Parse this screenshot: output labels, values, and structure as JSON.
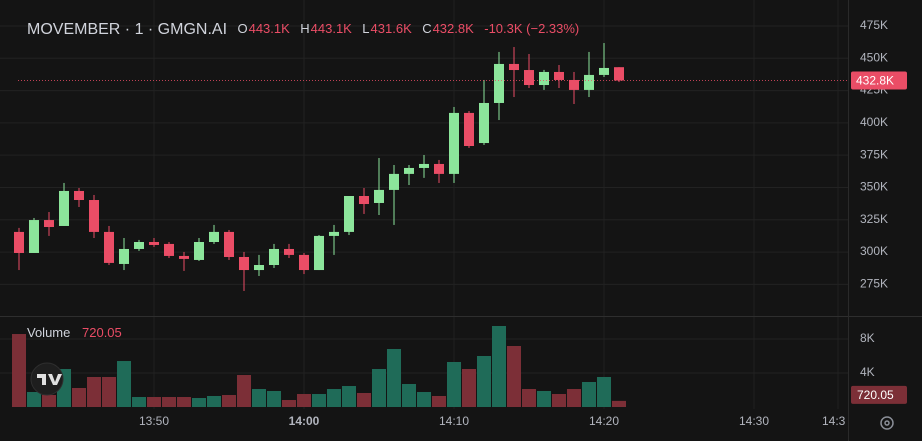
{
  "chart_data": [
    {
      "type": "candlestick",
      "title": "MOVEMBER · 1 · GMGN.AI",
      "ohlc_labels": [
        {
          "key": "O",
          "value": "443.1K"
        },
        {
          "key": "H",
          "value": "443.1K"
        },
        {
          "key": "L",
          "value": "431.6K"
        },
        {
          "key": "C",
          "value": "432.8K"
        }
      ],
      "change": "-10.3K (−2.33%)",
      "x": [
        821,
        822,
        823,
        824,
        825,
        826,
        827,
        828,
        829,
        830,
        831,
        832,
        833,
        834,
        835,
        836,
        837,
        838,
        839,
        840,
        841,
        842,
        843,
        844,
        845,
        846,
        847,
        848,
        849,
        850,
        851,
        852,
        853,
        854,
        855,
        856,
        857,
        858,
        859,
        860,
        861
      ],
      "open": [
        315.6,
        299.3,
        324.8,
        320.2,
        347.3,
        340.3,
        315.6,
        290.8,
        302.4,
        307.8,
        306.3,
        297.0,
        293.9,
        307.8,
        315.6,
        296.2,
        286.1,
        290.0,
        302.4,
        297.8,
        286.1,
        312.5,
        315.6,
        343.4,
        338.0,
        348.1,
        360.5,
        365.1,
        368.2,
        360.5,
        407.7,
        384.4,
        415.4,
        445.6,
        440.9,
        429.3,
        439.4,
        433.2,
        425.5,
        437.1,
        443.1
      ],
      "high": [
        318.7,
        326.4,
        331.0,
        353.5,
        349.6,
        344.2,
        320.2,
        310.9,
        309.4,
        310.9,
        307.8,
        300.1,
        310.9,
        321.0,
        317.1,
        300.1,
        297.8,
        306.3,
        306.3,
        299.3,
        313.2,
        321.0,
        343.4,
        349.6,
        372.8,
        367.4,
        367.4,
        375.1,
        371.3,
        412.3,
        409.2,
        433.2,
        454.9,
        458.7,
        453.3,
        441.0,
        444.8,
        439.4,
        454.9,
        461.8,
        443.1
      ],
      "low": [
        286.1,
        299.3,
        312.5,
        320.2,
        334.9,
        310.9,
        290.0,
        286.1,
        300.9,
        304.0,
        295.4,
        285.4,
        293.1,
        306.3,
        293.9,
        269.9,
        281.5,
        287.7,
        295.4,
        283.0,
        286.1,
        297.8,
        313.2,
        329.5,
        328.7,
        321.0,
        351.9,
        357.4,
        353.5,
        353.5,
        380.6,
        382.9,
        402.2,
        420.0,
        427.0,
        425.5,
        427.0,
        414.6,
        420.0,
        435.5,
        431.6
      ],
      "close": [
        299.3,
        324.8,
        319.4,
        347.3,
        340.3,
        315.6,
        291.6,
        302.4,
        307.8,
        305.5,
        297.0,
        294.7,
        307.8,
        315.6,
        296.2,
        286.1,
        290.0,
        302.4,
        297.8,
        286.1,
        312.5,
        315.6,
        343.4,
        337.2,
        348.1,
        360.5,
        365.1,
        368.2,
        360.5,
        407.7,
        382.1,
        415.4,
        445.6,
        440.9,
        429.3,
        439.4,
        433.2,
        425.5,
        437.1,
        442.5,
        432.8
      ],
      "up_color": "#8ce59b",
      "down_color": "#ea4d66",
      "xlim": [
        819.733,
        876.267
      ],
      "xticks": [
        {
          "value": 830,
          "label": "13:50"
        },
        {
          "value": 840,
          "label": "14:00"
        },
        {
          "value": 850,
          "label": "14:10"
        },
        {
          "value": 860,
          "label": "14:20"
        },
        {
          "value": 870,
          "label": "14:30"
        },
        {
          "value": 875.6,
          "label": "14:3"
        }
      ],
      "ylim": [
        251.3,
        495.1
      ],
      "yticks": [
        {
          "value": 275,
          "label": "275K"
        },
        {
          "value": 300,
          "label": "300K"
        },
        {
          "value": 325,
          "label": "325K"
        },
        {
          "value": 350,
          "label": "350K"
        },
        {
          "value": 375,
          "label": "375K"
        },
        {
          "value": 400,
          "label": "400K"
        },
        {
          "value": 425,
          "label": "425K"
        },
        {
          "value": 450,
          "label": "450K"
        },
        {
          "value": 475,
          "label": "475K"
        }
      ],
      "grid": true
    },
    {
      "type": "volume",
      "title": "Volume",
      "values": [
        8585,
        1764,
        1411,
        4470,
        2235,
        3529,
        3529,
        5410,
        1176,
        1176,
        1176,
        1176,
        1058,
        1294,
        1411,
        3764,
        2117,
        1882,
        823,
        1529,
        1529,
        2117,
        2470,
        1647,
        4470,
        6823,
        2706,
        1764,
        1294,
        5294,
        4470,
        6000,
        9529,
        7176,
        2117,
        1882,
        1529,
        2117,
        2941,
        3529,
        720.05
      ],
      "up_color": "#1f6b58",
      "down_color": "#7c2f37",
      "ylim": [
        0,
        10235
      ],
      "yticks": [
        {
          "value": 4000,
          "label": "4K"
        },
        {
          "value": 8000,
          "label": "8K"
        }
      ],
      "grid": true
    }
  ]
}
